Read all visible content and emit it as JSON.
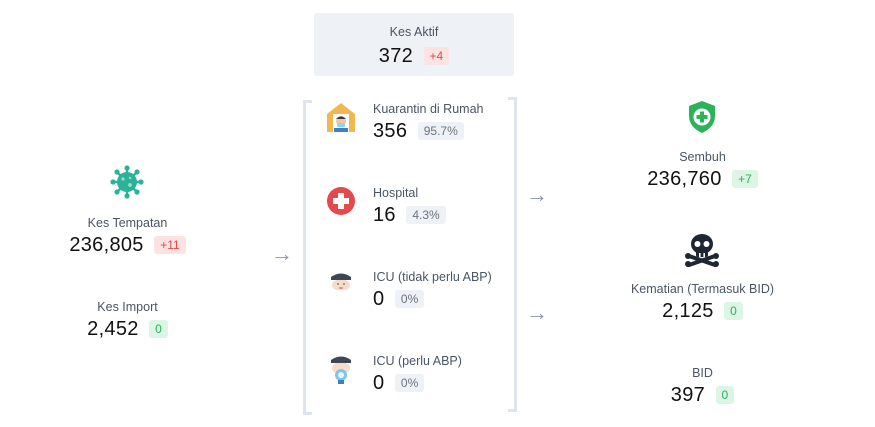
{
  "active": {
    "label": "Kes Aktif",
    "value": "372",
    "delta": "+4"
  },
  "local": {
    "label": "Kes Tempatan",
    "value": "236,805",
    "delta": "+11",
    "icon": "virus-icon"
  },
  "imported": {
    "label": "Kes Import",
    "value": "2,452",
    "delta": "0"
  },
  "care": [
    {
      "label": "Kuarantin di Rumah",
      "value": "356",
      "pct": "95.7%",
      "icon": "home-quarantine-icon"
    },
    {
      "label": "Hospital",
      "value": "16",
      "pct": "4.3%",
      "icon": "hospital-cross-icon"
    },
    {
      "label": "ICU (tidak perlu ABP)",
      "value": "0",
      "pct": "0%",
      "icon": "icu-patient-icon"
    },
    {
      "label": "ICU (perlu ABP)",
      "value": "0",
      "pct": "0%",
      "icon": "ventilator-patient-icon"
    }
  ],
  "recovered": {
    "label": "Sembuh",
    "value": "236,760",
    "delta": "+7",
    "icon": "shield-plus-icon"
  },
  "deaths": {
    "label": "Kematian (Termasuk BID)",
    "value": "2,125",
    "delta": "0",
    "icon": "skull-icon"
  },
  "bid": {
    "label": "BID",
    "value": "397",
    "delta": "0"
  },
  "colors": {
    "red": "#dc4b4b",
    "green": "#2bb35a",
    "teal": "#2ab39a",
    "bracket": "#dfe5ee",
    "panel": "#eef1f5"
  }
}
